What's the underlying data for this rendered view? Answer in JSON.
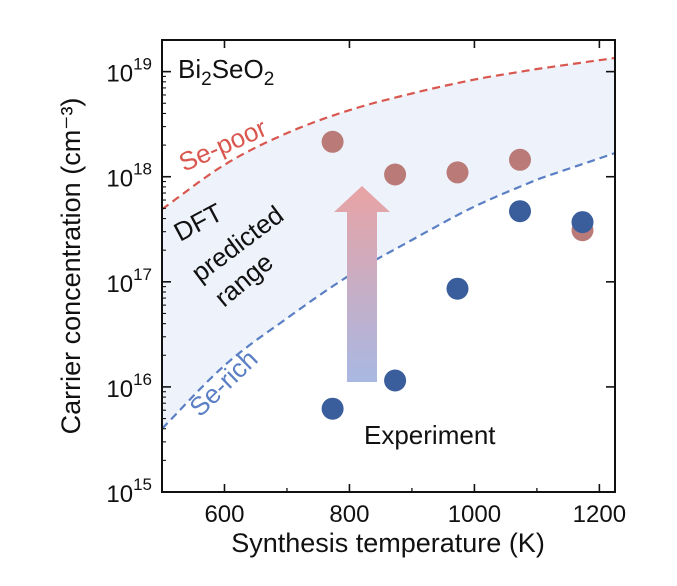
{
  "chart_data": {
    "type": "scatter",
    "title": "Bi₂SeO₂",
    "xlabel": "Synthesis temperature (K)",
    "ylabel": "Carrier concentration (cm⁻³)",
    "xlim": [
      500,
      1225
    ],
    "ylim": [
      1000000000000000.0,
      2e+19
    ],
    "yscale": "log",
    "x_ticks": [
      600,
      800,
      1000,
      1200
    ],
    "y_ticks": [
      {
        "value": 1000000000000000.0,
        "mantissa": "10",
        "exp": "15"
      },
      {
        "value": 1e+16,
        "mantissa": "10",
        "exp": "16"
      },
      {
        "value": 1e+17,
        "mantissa": "10",
        "exp": "17"
      },
      {
        "value": 1e+18,
        "mantissa": "10",
        "exp": "18"
      },
      {
        "value": 1e+19,
        "mantissa": "10",
        "exp": "19"
      }
    ],
    "grid": false,
    "colors": {
      "se_poor": "#d9574f",
      "se_rich": "#5a7fc4",
      "band_fill": "#eef2fa",
      "exp_red": "#b97a78",
      "exp_blue": "#3a5d9c",
      "arrow_top": "#e8a3a4",
      "arrow_bottom": "#a9b8e3"
    },
    "curves": [
      {
        "label": "Se-poor",
        "x": [
          500,
          600,
          700,
          800,
          900,
          1000,
          1100,
          1225
        ],
        "y": [
          4.9e+17,
          1.3e+18,
          2.6e+18,
          4.3e+18,
          6.2e+18,
          8.4e+18,
          1.06e+19,
          1.35e+19
        ]
      },
      {
        "label": "Se-rich",
        "x": [
          500,
          600,
          700,
          800,
          900,
          1000,
          1100,
          1225
        ],
        "y": [
          4000000000000000.0,
          1.6e+16,
          4.5e+16,
          1.15e+17,
          2.5e+17,
          5.2e+17,
          9.4e+17,
          1.68e+18
        ]
      }
    ],
    "series": [
      {
        "color": "red",
        "x": [
          773,
          873,
          973,
          1073,
          1173
        ],
        "y": [
          2.15e+18,
          1.05e+18,
          1.1e+18,
          1.45e+18,
          3.1e+17
        ]
      },
      {
        "color": "blue",
        "x": [
          773,
          873,
          973,
          1073,
          1173
        ],
        "y": [
          6200000000000000.0,
          1.15e+16,
          8.6e+16,
          4.7e+17,
          3.7e+17
        ]
      }
    ],
    "annotations": {
      "band_label_1": "DFT",
      "band_label_2": "predicted",
      "band_label_3": "range",
      "experiment": "Experiment"
    }
  }
}
